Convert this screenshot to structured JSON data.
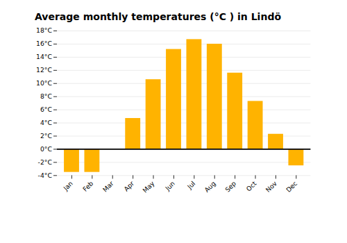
{
  "chart_data": {
    "type": "bar",
    "title": "Average monthly temperatures (°C ) in Lindö",
    "categories": [
      "Jan",
      "Feb",
      "Mar",
      "Apr",
      "May",
      "Jun",
      "Jul",
      "Aug",
      "Sep",
      "Oct",
      "Nov",
      "Dec"
    ],
    "values": [
      -3.5,
      -3.5,
      0.0,
      4.7,
      10.6,
      15.2,
      16.7,
      16.0,
      11.6,
      7.3,
      2.3,
      -2.5
    ],
    "color": "#FFB300",
    "ylim": [
      -4,
      18
    ],
    "yticks": [
      {
        "value": -4,
        "label": "-4°C"
      },
      {
        "value": -2,
        "label": "-2°C"
      },
      {
        "value": 0,
        "label": "0°C"
      },
      {
        "value": 2,
        "label": "2°C"
      },
      {
        "value": 4,
        "label": "4°C"
      },
      {
        "value": 6,
        "label": "6°C"
      },
      {
        "value": 8,
        "label": "8°C"
      },
      {
        "value": 10,
        "label": "10°C"
      },
      {
        "value": 12,
        "label": "12°C"
      },
      {
        "value": 14,
        "label": "14°C"
      },
      {
        "value": 16,
        "label": "16°C"
      },
      {
        "value": 18,
        "label": "18°C"
      }
    ],
    "grid": true
  }
}
